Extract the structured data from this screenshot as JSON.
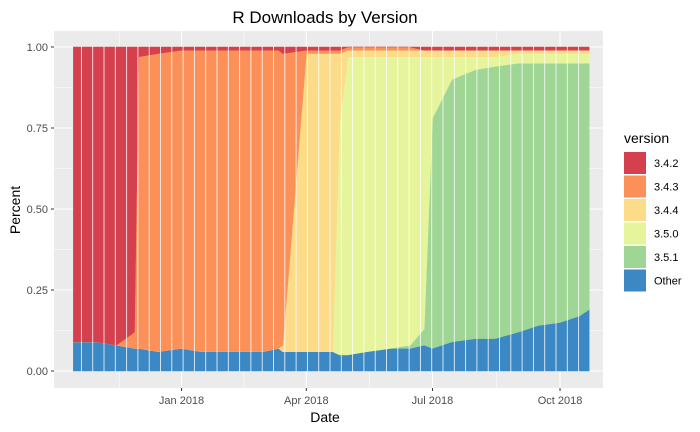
{
  "chart_data": {
    "type": "area",
    "stacked": "percent",
    "title": "R Downloads by Version",
    "xlabel": "Date",
    "ylabel": "Percent",
    "x_range": [
      "2017-10-01",
      "2018-11-01"
    ],
    "ylim": [
      0,
      1
    ],
    "x_ticks": [
      {
        "date": "2018-01-01",
        "label": "Jan 2018"
      },
      {
        "date": "2018-04-01",
        "label": "Apr 2018"
      },
      {
        "date": "2018-07-01",
        "label": "Jul 2018"
      },
      {
        "date": "2018-10-01",
        "label": "Oct 2018"
      }
    ],
    "y_ticks": [
      {
        "value": 0.0,
        "label": "0.00"
      },
      {
        "value": 0.25,
        "label": "0.25"
      },
      {
        "value": 0.5,
        "label": "0.50"
      },
      {
        "value": 0.75,
        "label": "0.75"
      },
      {
        "value": 1.0,
        "label": "1.00"
      }
    ],
    "grid": true,
    "legend": {
      "title": "version",
      "position": "right"
    },
    "x": [
      "2017-10-15",
      "2017-11-01",
      "2017-11-15",
      "2017-11-28",
      "2017-12-01",
      "2017-12-15",
      "2018-01-01",
      "2018-01-15",
      "2018-02-01",
      "2018-02-15",
      "2018-03-01",
      "2018-03-12",
      "2018-03-15",
      "2018-04-01",
      "2018-04-20",
      "2018-04-25",
      "2018-05-01",
      "2018-05-15",
      "2018-06-01",
      "2018-06-15",
      "2018-06-25",
      "2018-07-01",
      "2018-07-15",
      "2018-08-01",
      "2018-08-15",
      "2018-09-01",
      "2018-09-15",
      "2018-10-01",
      "2018-10-15",
      "2018-10-22"
    ],
    "series": [
      {
        "name": "Other",
        "color": "#3b88c4",
        "values": [
          0.09,
          0.09,
          0.08,
          0.07,
          0.07,
          0.06,
          0.07,
          0.06,
          0.06,
          0.06,
          0.06,
          0.07,
          0.06,
          0.06,
          0.06,
          0.05,
          0.05,
          0.06,
          0.07,
          0.07,
          0.08,
          0.07,
          0.09,
          0.1,
          0.1,
          0.12,
          0.14,
          0.15,
          0.17,
          0.19
        ]
      },
      {
        "name": "3.5.1",
        "color": "#9fd696",
        "values": [
          0,
          0,
          0,
          0,
          0,
          0,
          0,
          0,
          0,
          0,
          0,
          0,
          0,
          0,
          0,
          0,
          0,
          0,
          0,
          0.01,
          0.05,
          0.71,
          0.81,
          0.83,
          0.84,
          0.83,
          0.81,
          0.8,
          0.78,
          0.76
        ]
      },
      {
        "name": "3.5.0",
        "color": "#e6f49c",
        "values": [
          0,
          0,
          0,
          0,
          0,
          0,
          0,
          0,
          0,
          0,
          0,
          0,
          0,
          0,
          0,
          0.72,
          0.92,
          0.91,
          0.9,
          0.89,
          0.84,
          0.19,
          0.07,
          0.04,
          0.03,
          0.03,
          0.03,
          0.03,
          0.03,
          0.03
        ]
      },
      {
        "name": "3.4.4",
        "color": "#fddc89",
        "values": [
          0,
          0,
          0,
          0,
          0,
          0,
          0,
          0,
          0,
          0,
          0,
          0,
          0.02,
          0.92,
          0.92,
          0.21,
          0.02,
          0.02,
          0.02,
          0.02,
          0.02,
          0.02,
          0.02,
          0.02,
          0.02,
          0.01,
          0.01,
          0.01,
          0.01,
          0.01
        ]
      },
      {
        "name": "3.4.3",
        "color": "#fb9158",
        "values": [
          0,
          0,
          0,
          0.05,
          0.9,
          0.92,
          0.92,
          0.93,
          0.93,
          0.93,
          0.93,
          0.92,
          0.9,
          0.01,
          0.01,
          0.01,
          0.01,
          0.01,
          0.01,
          0.01,
          0,
          0,
          0,
          0,
          0,
          0,
          0,
          0,
          0,
          0
        ]
      },
      {
        "name": "3.4.2",
        "color": "#d5404e",
        "values": [
          0.91,
          0.91,
          0.92,
          0.88,
          0.03,
          0.02,
          0.01,
          0.01,
          0.01,
          0.01,
          0.01,
          0.01,
          0.02,
          0.01,
          0.01,
          0.01,
          0,
          0,
          0,
          0,
          0.01,
          0.01,
          0.01,
          0.01,
          0.01,
          0.01,
          0.01,
          0.01,
          0.01,
          0.01
        ]
      }
    ],
    "legend_order": [
      "3.4.2",
      "3.4.3",
      "3.4.4",
      "3.5.0",
      "3.5.1",
      "Other"
    ]
  }
}
